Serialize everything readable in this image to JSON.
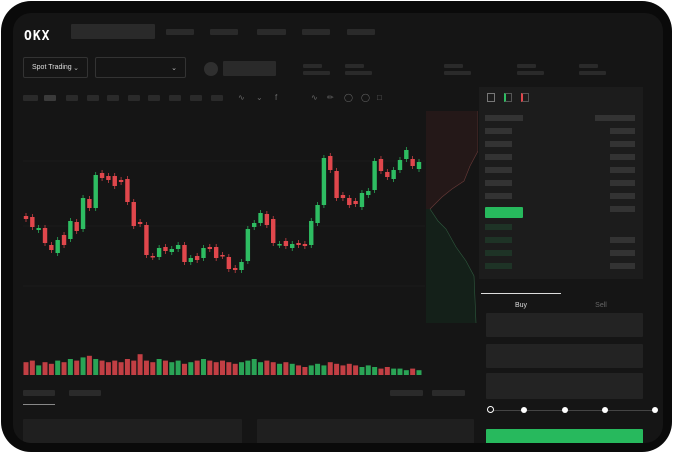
{
  "header": {
    "logo": "OKX"
  },
  "selectors": {
    "market_type": "Spot Trading",
    "pair": ""
  },
  "trade": {
    "tabs": [
      "Buy",
      "Sell"
    ],
    "active_tab": "Buy",
    "leverage_stops": 5
  },
  "colors": {
    "up": "#2ebd62",
    "down": "#e0474c",
    "accent": "#27b95d",
    "background": "#151515"
  },
  "chart_data": {
    "type": "candlestick",
    "candles": [
      [
        97,
        94
      ],
      [
        96,
        86
      ],
      [
        83,
        85
      ],
      [
        85,
        70
      ],
      [
        68,
        63
      ],
      [
        60,
        73
      ],
      [
        78,
        68
      ],
      [
        74,
        92
      ],
      [
        91,
        82
      ],
      [
        84,
        115
      ],
      [
        114,
        105
      ],
      [
        105,
        138
      ],
      [
        140,
        135
      ],
      [
        137,
        133
      ],
      [
        137,
        127
      ],
      [
        133,
        131
      ],
      [
        134,
        111
      ],
      [
        111,
        87
      ],
      [
        91,
        89
      ],
      [
        88,
        58
      ],
      [
        57,
        56
      ],
      [
        56,
        65
      ],
      [
        66,
        62
      ],
      [
        61,
        64
      ],
      [
        64,
        68
      ],
      [
        68,
        51
      ],
      [
        51,
        55
      ],
      [
        57,
        53
      ],
      [
        55,
        65
      ],
      [
        66,
        64
      ],
      [
        66,
        55
      ],
      [
        58,
        57
      ],
      [
        56,
        44
      ],
      [
        45,
        43
      ],
      [
        43,
        51
      ],
      [
        52,
        84
      ],
      [
        86,
        90
      ],
      [
        90,
        100
      ],
      [
        99,
        88
      ],
      [
        94,
        70
      ],
      [
        68,
        69
      ],
      [
        72,
        67
      ],
      [
        65,
        69
      ],
      [
        70,
        68
      ],
      [
        69,
        67
      ],
      [
        68,
        92
      ],
      [
        90,
        108
      ],
      [
        108,
        155
      ],
      [
        157,
        143
      ],
      [
        142,
        115
      ],
      [
        118,
        115
      ],
      [
        115,
        108
      ],
      [
        112,
        109
      ],
      [
        106,
        120
      ],
      [
        118,
        122
      ],
      [
        123,
        152
      ],
      [
        154,
        142
      ],
      [
        141,
        136
      ],
      [
        134,
        143
      ],
      [
        143,
        153
      ],
      [
        154,
        163
      ],
      [
        154,
        147
      ],
      [
        144,
        151
      ]
    ],
    "volume": [
      8,
      9,
      6,
      8,
      7,
      9,
      8,
      10,
      9,
      11,
      12,
      10,
      9,
      8,
      9,
      8,
      10,
      9,
      13,
      9,
      8,
      10,
      9,
      8,
      9,
      7,
      8,
      9,
      10,
      9,
      8,
      9,
      8,
      7,
      8,
      9,
      10,
      8,
      9,
      8,
      7,
      8,
      7,
      6,
      5,
      6,
      7,
      6,
      8,
      7,
      6,
      7,
      6,
      5,
      6,
      5,
      4,
      5,
      4,
      4,
      3,
      4,
      3
    ]
  }
}
